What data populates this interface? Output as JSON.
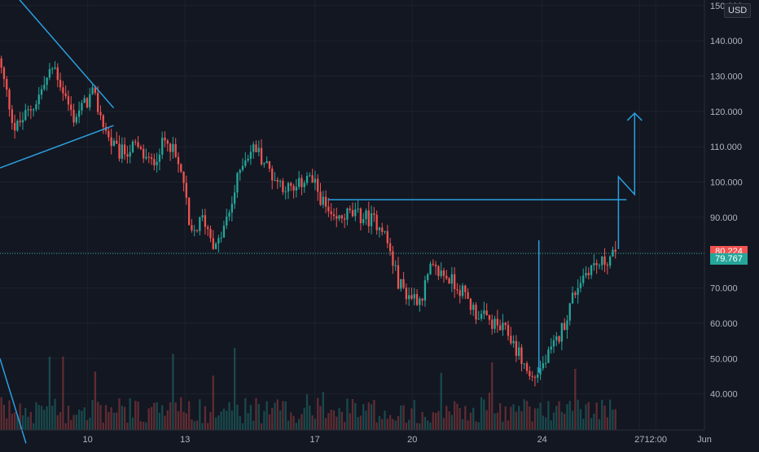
{
  "currency": "USD",
  "price_labels": {
    "last_price": "80.224",
    "last_price_color": "#f05350",
    "marker_price": "79.767",
    "marker_price_color": "#26a69a"
  },
  "colors": {
    "background": "#131722",
    "grid": "#1e222d",
    "up": "#26a69a",
    "down": "#ef5350",
    "drawing": "#2aa0e0",
    "axis_text": "#b2b5be"
  },
  "chart_data": {
    "type": "candlestick",
    "title": "",
    "xlabel": "",
    "ylabel": "",
    "ylim": [
      26000,
      150000
    ],
    "grid": true,
    "y_tick_labels": [
      "40.000",
      "50.000",
      "60.000",
      "70.000",
      "80.000",
      "90.000",
      "100.000",
      "110.000",
      "120.000",
      "130.000",
      "140.000",
      "150.000"
    ],
    "y_tick_values": [
      40000,
      50000,
      60000,
      70000,
      80000,
      90000,
      100000,
      110000,
      120000,
      130000,
      140000,
      150000
    ],
    "x_tick_labels": [
      "10",
      "13",
      "17",
      "20",
      "24",
      "27",
      "12:00",
      "Jun"
    ],
    "x_tick_days": [
      10,
      13,
      17,
      20,
      24,
      27,
      27.5,
      29
    ],
    "x_range_days": [
      7.3,
      29.0
    ],
    "price_path_days": [
      7.3,
      7.8,
      8.4,
      9.0,
      9.6,
      10.2,
      10.7,
      11.0,
      11.5,
      12.0,
      12.5,
      13.0,
      13.2,
      13.6,
      14.0,
      14.4,
      14.8,
      15.2,
      15.8,
      16.4,
      16.8,
      17.1,
      17.6,
      18.0,
      18.6,
      19.1,
      19.3,
      19.6,
      19.9,
      20.3,
      20.6,
      21.0,
      21.5,
      22.0,
      22.5,
      23.0,
      23.4,
      23.7,
      23.9,
      24.2,
      24.5,
      24.8,
      25.0,
      25.2,
      25.5,
      25.9,
      26.3
    ],
    "price_path_values": [
      135000,
      115000,
      122000,
      133000,
      118000,
      125000,
      112000,
      108000,
      110000,
      105000,
      113000,
      100000,
      84000,
      90000,
      81000,
      91000,
      106000,
      110000,
      101000,
      97000,
      102000,
      98000,
      88000,
      91000,
      90000,
      88000,
      82000,
      72000,
      68000,
      67000,
      75000,
      74000,
      70000,
      63000,
      60000,
      57000,
      50000,
      44000,
      46000,
      50000,
      55000,
      62000,
      68000,
      72000,
      76000,
      77000,
      80000
    ],
    "candle_count": 230,
    "volume_max": 18000,
    "last_price": 80224,
    "marker_price": 79767,
    "annotations": [
      {
        "type": "trendline",
        "role": "upper-channel",
        "points": [
          [
            7.3,
            158000
          ],
          [
            10.8,
            121000
          ]
        ]
      },
      {
        "type": "trendline",
        "role": "lower-channel",
        "points": [
          [
            7.3,
            104000
          ],
          [
            10.8,
            116000
          ]
        ]
      },
      {
        "type": "trendline",
        "role": "volume-diagonal",
        "points": [
          [
            7.3,
            50000
          ],
          [
            8.1,
            26000
          ]
        ]
      },
      {
        "type": "horizontal-ray",
        "role": "resistance",
        "points": [
          [
            17.4,
            95000
          ],
          [
            26.6,
            95000
          ]
        ]
      },
      {
        "type": "vertical-marker",
        "points": [
          [
            23.9,
            46000
          ],
          [
            23.9,
            83500
          ]
        ]
      },
      {
        "type": "projection-arrow",
        "points": [
          [
            26.35,
            81000
          ],
          [
            26.35,
            101500
          ],
          [
            26.85,
            96500
          ],
          [
            26.85,
            119500
          ]
        ]
      }
    ]
  }
}
